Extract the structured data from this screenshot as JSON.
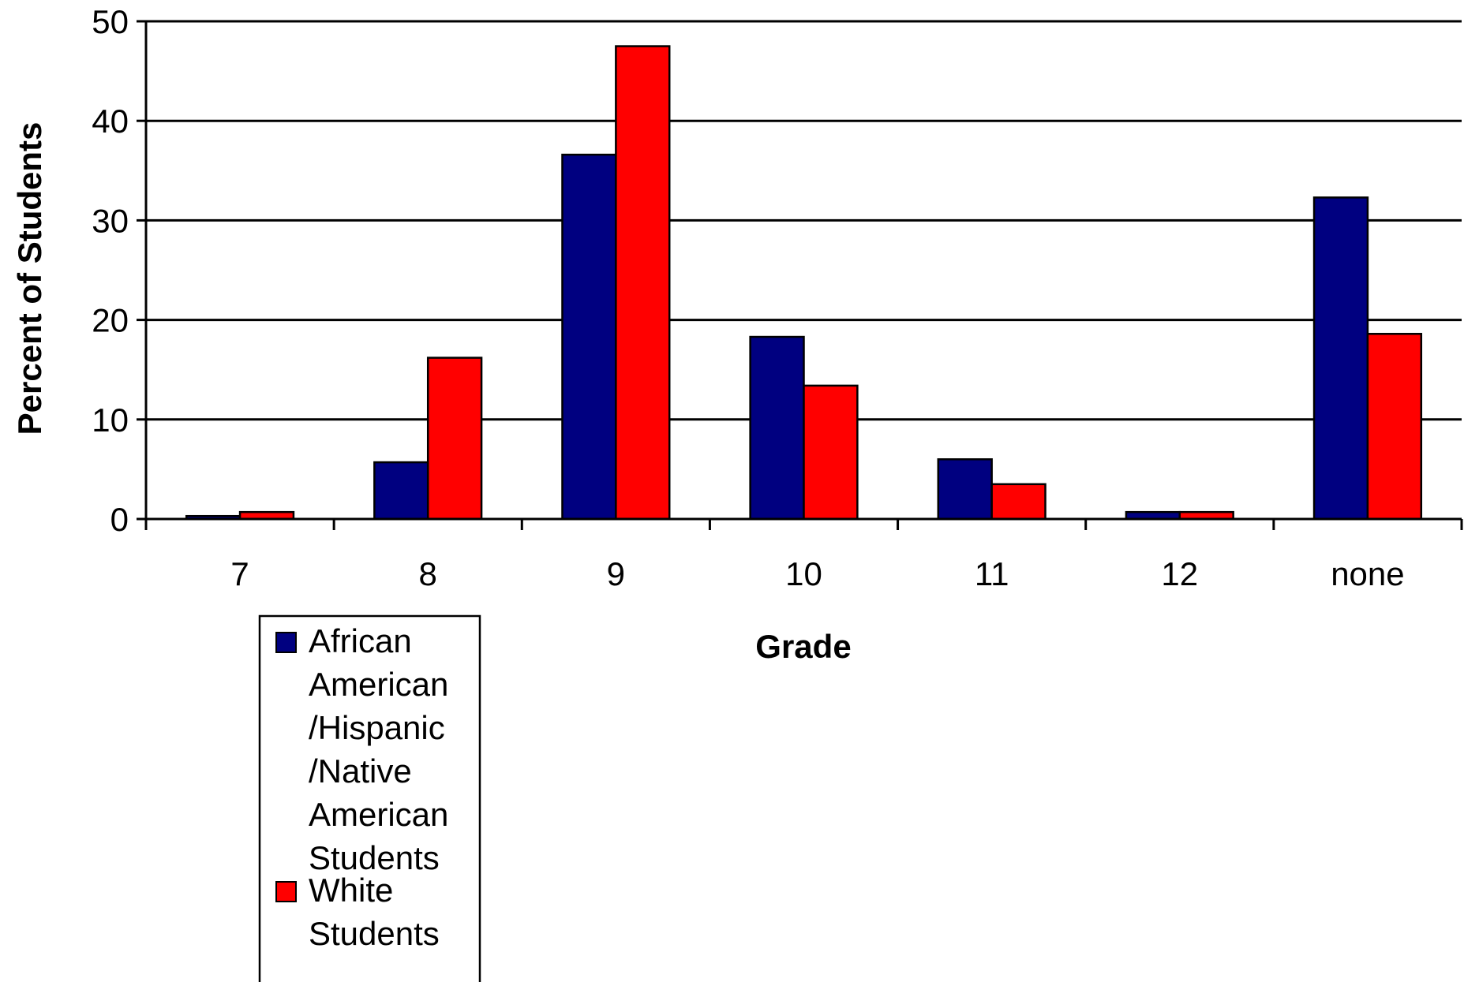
{
  "chart_data": {
    "type": "bar",
    "title": "",
    "xlabel": "Grade",
    "ylabel": "Percent of Students",
    "categories": [
      "7",
      "8",
      "9",
      "10",
      "11",
      "12",
      "none"
    ],
    "yticks": [
      "0",
      "10",
      "20",
      "30",
      "40",
      "50"
    ],
    "ylim": [
      0,
      50
    ],
    "grid": true,
    "legend_position": "bottom-left",
    "series": [
      {
        "name": "African American /Hispanic /Native American Students",
        "legend_lines": [
          "African",
          "American",
          "/Hispanic",
          "/Native",
          "American",
          "Students"
        ],
        "color": "#000080",
        "values": [
          0.3,
          5.7,
          36.6,
          18.3,
          6.0,
          0.7,
          32.3
        ]
      },
      {
        "name": "White Students",
        "legend_lines": [
          "White",
          "Students"
        ],
        "color": "#ff0000",
        "values": [
          0.7,
          16.2,
          47.5,
          13.4,
          3.5,
          0.7,
          18.6
        ]
      }
    ]
  }
}
